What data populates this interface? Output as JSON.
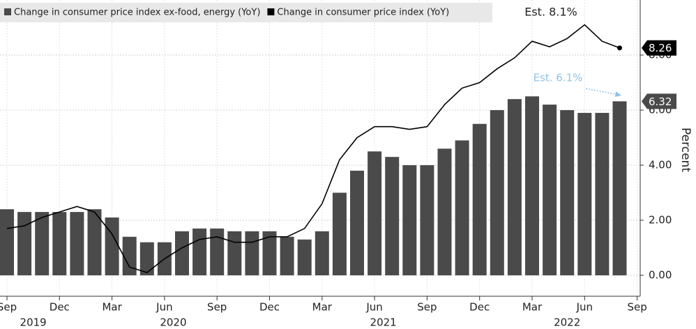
{
  "chart_data": {
    "type": "bar-line",
    "y_label": "Percent",
    "categories": [
      "Sep",
      null,
      null,
      "Dec",
      null,
      null,
      "Mar",
      null,
      null,
      "Jun",
      null,
      null,
      "Sep",
      null,
      null,
      "Dec",
      null,
      null,
      "Mar",
      null,
      null,
      "Jun",
      null,
      null,
      "Sep",
      null,
      null,
      "Dec",
      null,
      null,
      "Mar",
      null,
      null,
      "Jun",
      null,
      null,
      "Sep"
    ],
    "years": [
      "2019",
      "2020",
      "2021",
      "2022"
    ],
    "series": [
      {
        "name": "Change in consumer price index ex-food, energy (YoY)",
        "kind": "bar",
        "color": "#4a4a4a",
        "values": [
          2.4,
          2.3,
          2.3,
          2.3,
          2.3,
          2.4,
          2.1,
          1.4,
          1.2,
          1.2,
          1.6,
          1.7,
          1.7,
          1.6,
          1.6,
          1.6,
          1.4,
          1.3,
          1.6,
          3.0,
          3.8,
          4.5,
          4.3,
          4.0,
          4.0,
          4.6,
          4.9,
          5.5,
          6.0,
          6.4,
          6.5,
          6.2,
          6.0,
          5.9,
          5.9,
          6.32,
          null
        ]
      },
      {
        "name": "Change in consumer price index (YoY)",
        "kind": "line",
        "color": "#000000",
        "values": [
          1.7,
          1.8,
          2.1,
          2.3,
          2.5,
          2.3,
          1.5,
          0.3,
          0.1,
          0.6,
          1.0,
          1.3,
          1.4,
          1.2,
          1.2,
          1.4,
          1.4,
          1.7,
          2.6,
          4.2,
          5.0,
          5.4,
          5.4,
          5.3,
          5.4,
          6.2,
          6.8,
          7.0,
          7.5,
          7.9,
          8.5,
          8.3,
          8.6,
          9.1,
          8.5,
          8.26,
          null
        ]
      }
    ],
    "annotations": [
      {
        "text": "Est. 8.1%",
        "color": "#222222"
      },
      {
        "text": "Est. 6.1%",
        "color": "#8fc3e8"
      }
    ],
    "ylim": [
      -0.76,
      10
    ],
    "yticks": [
      {
        "value": 0,
        "label": "0.00"
      },
      {
        "value": 2,
        "label": "2.00"
      },
      {
        "value": 4,
        "label": "4.00"
      },
      {
        "value": 6,
        "label": "6.00"
      },
      {
        "value": 8,
        "label": "8.00"
      }
    ],
    "grid": true
  }
}
